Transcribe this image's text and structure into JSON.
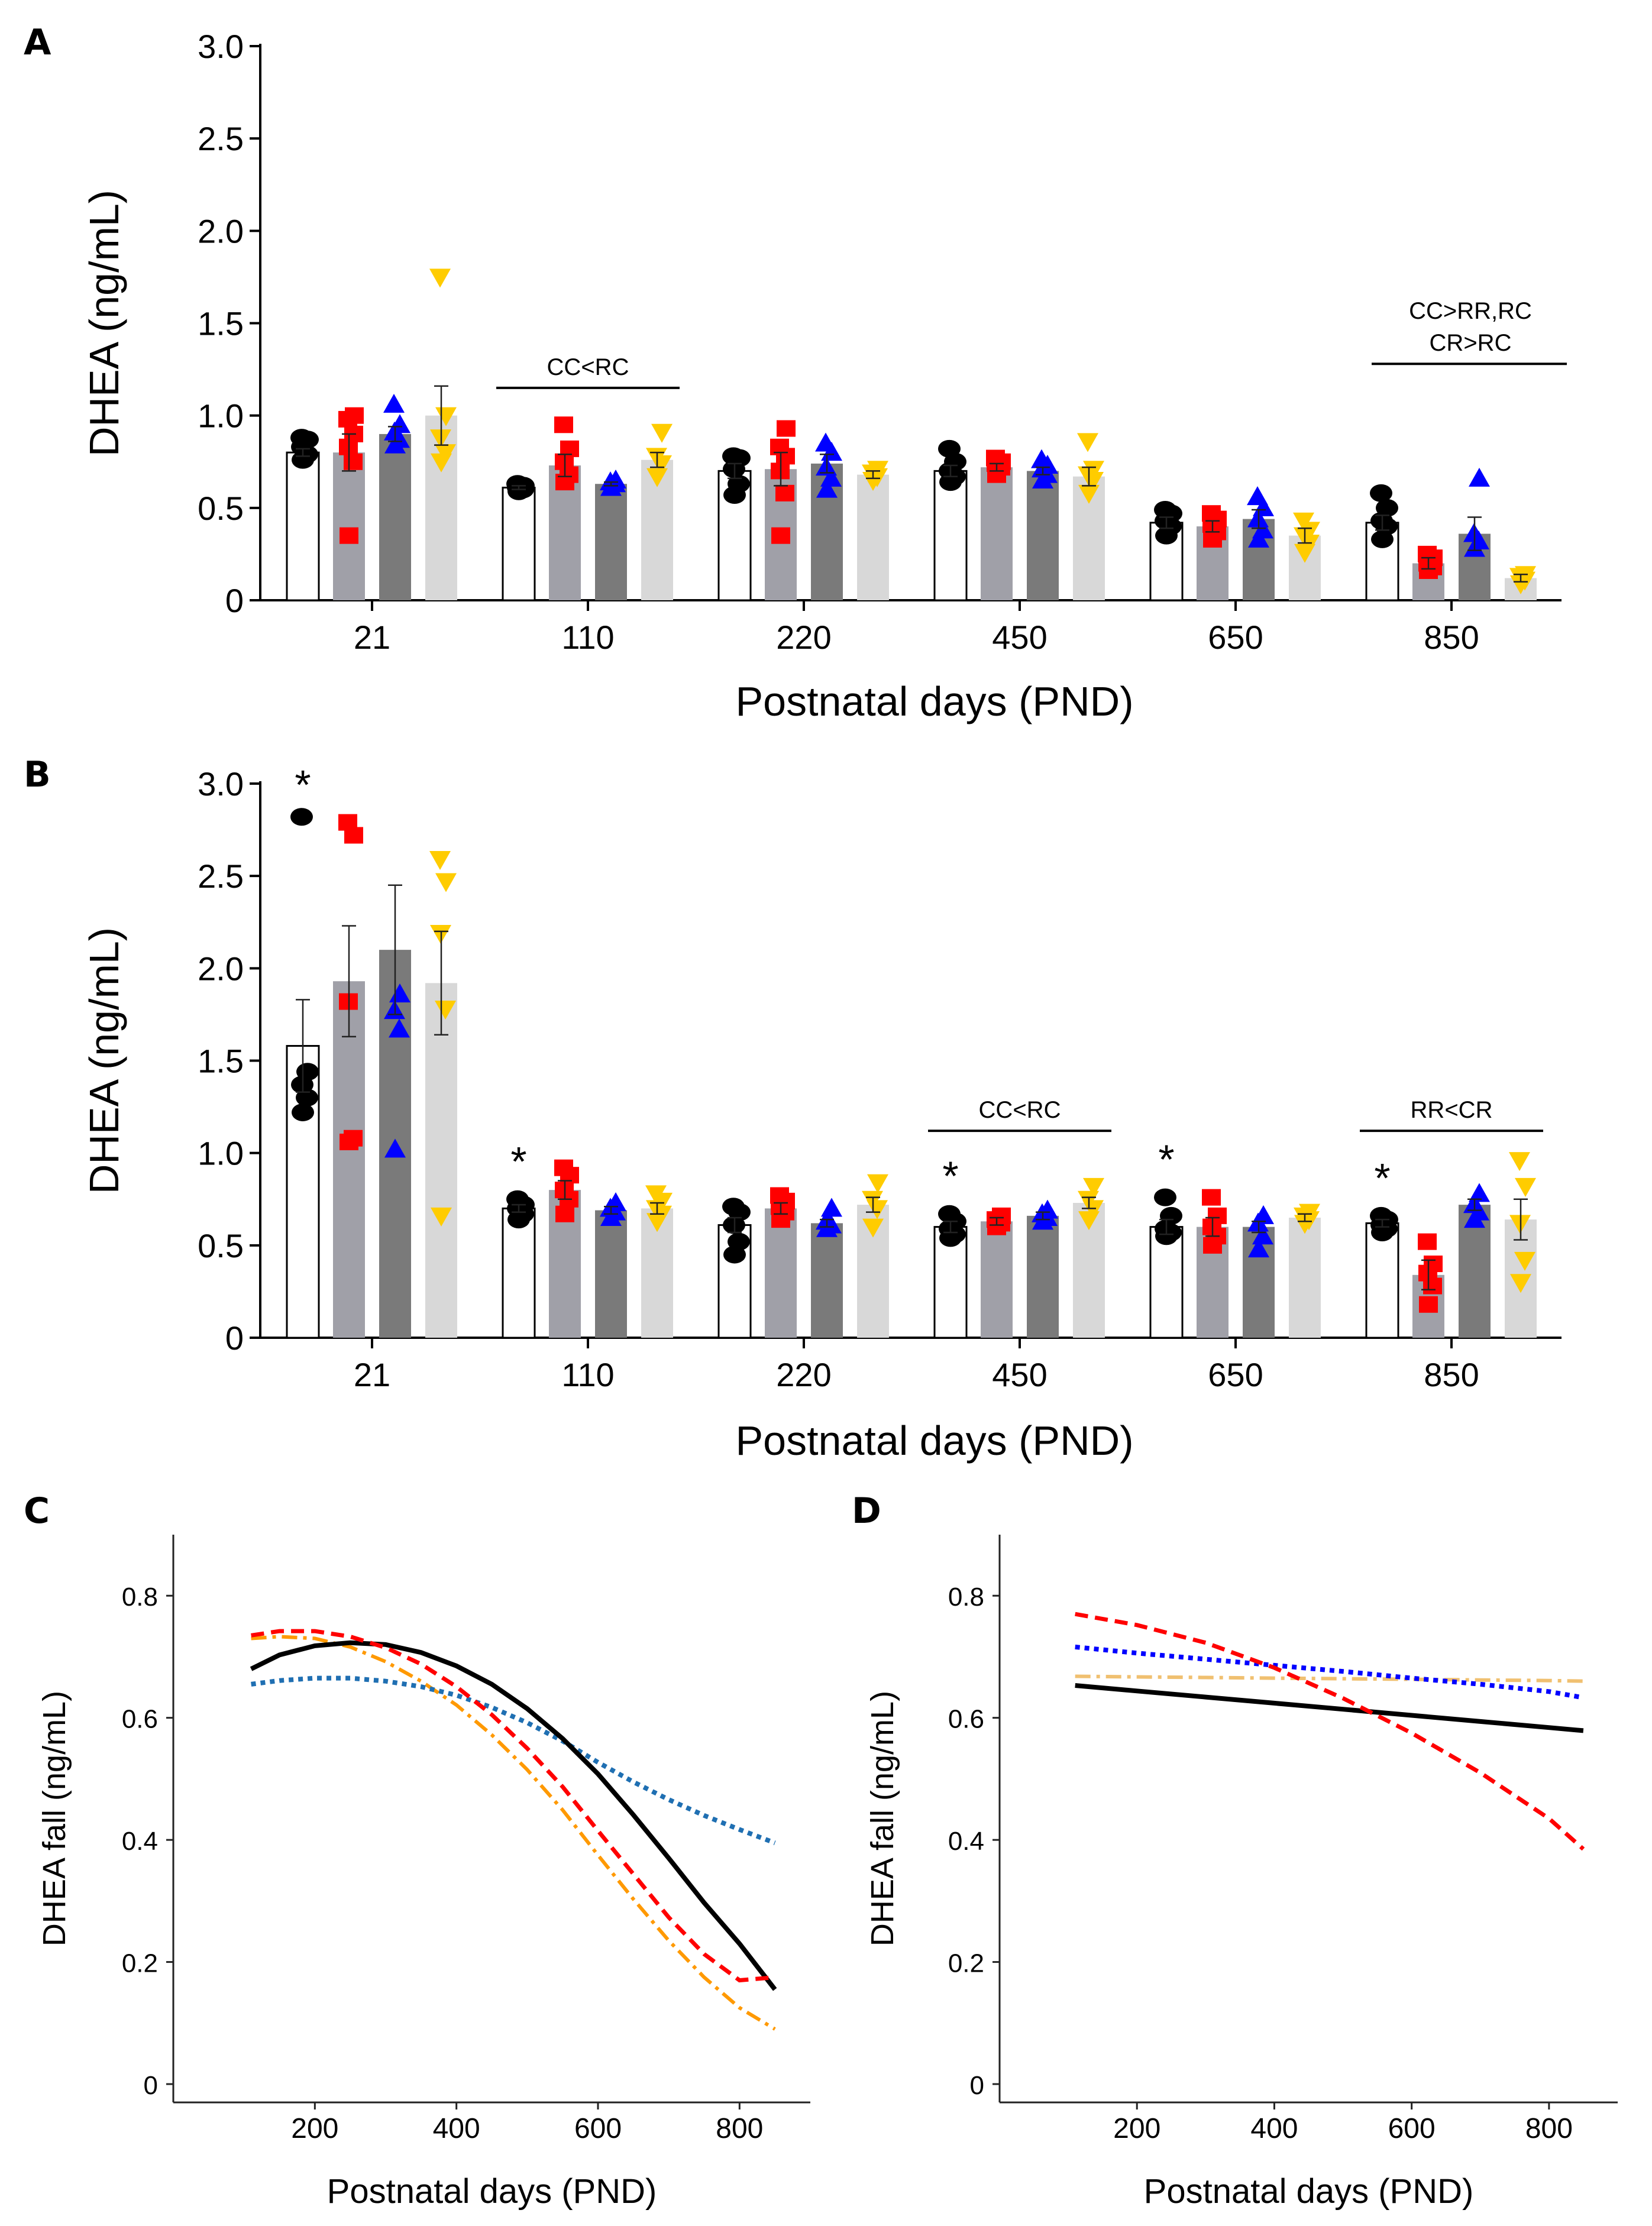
{
  "figure": {
    "colors": {
      "CC": "#000000",
      "CR": "#ff0000",
      "RC": "#0000ff",
      "RR": "#ffcc00",
      "bar_CC": "#ffffff",
      "bar_CR": "#a0a0a8",
      "bar_RC": "#7a7a7a",
      "bar_RR": "#d8d8d8",
      "fit_CC": "#000000",
      "fit_CR": "#ff0000",
      "fit_RC_C": "#1f6fb2",
      "fit_RC_D": "#0000ff",
      "fit_RR_C": "#ff9900",
      "fit_RR_D": "#f0c070"
    }
  },
  "chart_data": [
    {
      "panel": "A",
      "type": "bar",
      "xlabel": "Postnatal days (PND)",
      "ylabel": "DHEA (ng/mL)",
      "ylim": [
        0,
        3.0
      ],
      "yticks": [
        "0",
        "0.5",
        "1.0",
        "1.5",
        "2.0",
        "2.5",
        "3.0"
      ],
      "categories": [
        "21",
        "110",
        "220",
        "450",
        "650",
        "850"
      ],
      "series": [
        {
          "name": "CC",
          "marker": "circle",
          "values": [
            0.8,
            0.61,
            0.7,
            0.7,
            0.42,
            0.42
          ],
          "sem": [
            0.02,
            0.01,
            0.04,
            0.03,
            0.03,
            0.04
          ],
          "points": [
            [
              0.76,
              0.79,
              0.83,
              0.87,
              0.88
            ],
            [
              0.59,
              0.6,
              0.61,
              0.62,
              0.63
            ],
            [
              0.57,
              0.63,
              0.71,
              0.77,
              0.78
            ],
            [
              0.64,
              0.67,
              0.7,
              0.75,
              0.82
            ],
            [
              0.35,
              0.4,
              0.43,
              0.47,
              0.49
            ],
            [
              0.33,
              0.4,
              0.43,
              0.5,
              0.58
            ]
          ]
        },
        {
          "name": "CR",
          "marker": "square",
          "values": [
            0.8,
            0.73,
            0.71,
            0.72,
            0.4,
            0.2
          ],
          "sem": [
            0.1,
            0.06,
            0.09,
            0.02,
            0.03,
            0.03
          ],
          "points": [
            [
              0.35,
              0.75,
              0.83,
              0.9,
              0.98,
              1.0
            ],
            [
              0.64,
              0.68,
              0.75,
              0.82,
              0.95
            ],
            [
              0.35,
              0.58,
              0.7,
              0.78,
              0.83,
              0.93
            ],
            [
              0.68,
              0.72,
              0.74,
              0.75,
              0.77
            ],
            [
              0.33,
              0.37,
              0.41,
              0.44,
              0.47
            ],
            [
              0.16,
              0.18,
              0.2,
              0.23,
              0.25
            ]
          ]
        },
        {
          "name": "RC",
          "marker": "triangle-up",
          "values": [
            0.9,
            0.63,
            0.74,
            0.7,
            0.44,
            0.36
          ],
          "sem": [
            0.04,
            0.01,
            0.05,
            0.02,
            0.05,
            0.09
          ],
          "points": [
            [
              0.84,
              0.87,
              0.91,
              0.95,
              1.06
            ],
            [
              0.61,
              0.63,
              0.64,
              0.65
            ],
            [
              0.6,
              0.66,
              0.72,
              0.8,
              0.85
            ],
            [
              0.65,
              0.68,
              0.71,
              0.73,
              0.76
            ],
            [
              0.33,
              0.38,
              0.44,
              0.5,
              0.56
            ],
            [
              0.28,
              0.32,
              0.36,
              0.66
            ]
          ]
        },
        {
          "name": "RR",
          "marker": "triangle-down",
          "values": [
            1.0,
            0.76,
            0.68,
            0.67,
            0.35,
            0.12
          ],
          "sem": [
            0.16,
            0.04,
            0.02,
            0.05,
            0.04,
            0.02
          ],
          "points": [
            [
              0.75,
              0.8,
              0.88,
              1.0,
              1.75
            ],
            [
              0.67,
              0.74,
              0.78,
              0.91
            ],
            [
              0.65,
              0.67,
              0.69,
              0.71
            ],
            [
              0.58,
              0.65,
              0.68,
              0.71,
              0.86
            ],
            [
              0.26,
              0.31,
              0.35,
              0.38,
              0.43
            ],
            [
              0.09,
              0.11,
              0.13,
              0.14
            ]
          ]
        }
      ],
      "annotations": [
        {
          "text": "CC<RC",
          "category": "110"
        },
        {
          "text": "CC>RR,RC",
          "category": "850",
          "line2": "CR>RC"
        }
      ]
    },
    {
      "panel": "B",
      "type": "bar",
      "xlabel": "Postnatal days (PND)",
      "ylabel": "DHEA (ng/mL)",
      "ylim": [
        0,
        3.0
      ],
      "yticks": [
        "0",
        "0.5",
        "1.0",
        "1.5",
        "2.0",
        "2.5",
        "3.0"
      ],
      "categories": [
        "21",
        "110",
        "220",
        "450",
        "650",
        "850"
      ],
      "series": [
        {
          "name": "CC",
          "marker": "circle",
          "values": [
            1.58,
            0.7,
            0.61,
            0.6,
            0.6,
            0.62
          ],
          "sem": [
            0.25,
            0.02,
            0.04,
            0.03,
            0.04,
            0.02
          ],
          "points": [
            [
              1.22,
              1.3,
              1.37,
              1.44,
              2.82
            ],
            [
              0.64,
              0.67,
              0.7,
              0.72,
              0.75
            ],
            [
              0.45,
              0.52,
              0.61,
              0.68,
              0.71
            ],
            [
              0.54,
              0.56,
              0.59,
              0.63,
              0.67
            ],
            [
              0.55,
              0.57,
              0.59,
              0.66,
              0.76
            ],
            [
              0.57,
              0.59,
              0.61,
              0.64,
              0.66
            ]
          ]
        },
        {
          "name": "CR",
          "marker": "square",
          "values": [
            1.93,
            0.8,
            0.7,
            0.63,
            0.6,
            0.34
          ],
          "sem": [
            0.3,
            0.05,
            0.03,
            0.02,
            0.05,
            0.08
          ],
          "points": [
            [
              1.06,
              1.08,
              1.82,
              2.72,
              2.79
            ],
            [
              0.67,
              0.75,
              0.8,
              0.88,
              0.92
            ],
            [
              0.64,
              0.68,
              0.71,
              0.74,
              0.77
            ],
            [
              0.6,
              0.62,
              0.64,
              0.66
            ],
            [
              0.5,
              0.55,
              0.6,
              0.66,
              0.76
            ],
            [
              0.18,
              0.28,
              0.35,
              0.4,
              0.52
            ]
          ]
        },
        {
          "name": "RC",
          "marker": "triangle-up",
          "values": [
            2.1,
            0.69,
            0.62,
            0.66,
            0.6,
            0.72
          ],
          "sem": [
            0.35,
            0.02,
            0.02,
            0.02,
            0.03,
            0.03
          ],
          "points": [
            [
              1.02,
              1.67,
              1.77,
              1.86
            ],
            [
              0.65,
              0.68,
              0.7,
              0.73
            ],
            [
              0.59,
              0.61,
              0.63,
              0.7
            ],
            [
              0.63,
              0.65,
              0.67,
              0.69
            ],
            [
              0.48,
              0.55,
              0.62,
              0.66
            ],
            [
              0.64,
              0.68,
              0.72,
              0.78
            ]
          ]
        },
        {
          "name": "RR",
          "marker": "triangle-down",
          "values": [
            1.92,
            0.7,
            0.72,
            0.73,
            0.65,
            0.64
          ],
          "sem": [
            0.28,
            0.03,
            0.04,
            0.03,
            0.02,
            0.11
          ],
          "points": [
            [
              0.66,
              1.78,
              2.19,
              2.47,
              2.59
            ],
            [
              0.63,
              0.67,
              0.7,
              0.74,
              0.78
            ],
            [
              0.6,
              0.7,
              0.75,
              0.84
            ],
            [
              0.64,
              0.7,
              0.75,
              0.82
            ],
            [
              0.62,
              0.64,
              0.66,
              0.68
            ],
            [
              0.3,
              0.42,
              0.62,
              0.82,
              0.96
            ]
          ]
        }
      ],
      "stars": [
        {
          "text": "*",
          "category": "21"
        },
        {
          "text": "*",
          "category": "110"
        },
        {
          "text": "*",
          "category": "450"
        },
        {
          "text": "*",
          "category": "650"
        },
        {
          "text": "*",
          "category": "850"
        }
      ],
      "annotations": [
        {
          "text": "CC<RC",
          "category": "450"
        },
        {
          "text": "RR<CR",
          "category": "850"
        }
      ]
    },
    {
      "panel": "C",
      "type": "line",
      "xlabel": "Postnatal days (PND)",
      "ylabel": "DHEA fall (ng/mL)",
      "xlim": [
        0,
        900
      ],
      "ylim": [
        -0.03,
        0.9
      ],
      "xticks": [
        "200",
        "400",
        "600",
        "800"
      ],
      "yticks": [
        "0",
        "0.2",
        "0.4",
        "0.6",
        "0.8"
      ],
      "x": [
        110,
        150,
        200,
        250,
        300,
        350,
        400,
        450,
        500,
        550,
        600,
        650,
        700,
        750,
        800,
        850
      ],
      "series": [
        {
          "name": "CC",
          "style": "solid",
          "values": [
            0.68,
            0.703,
            0.718,
            0.723,
            0.72,
            0.707,
            0.685,
            0.655,
            0.615,
            0.566,
            0.508,
            0.441,
            0.37,
            0.297,
            0.23,
            0.155
          ]
        },
        {
          "name": "CR",
          "style": "dashed",
          "values": [
            0.735,
            0.742,
            0.742,
            0.733,
            0.715,
            0.688,
            0.651,
            0.605,
            0.55,
            0.487,
            0.415,
            0.344,
            0.273,
            0.213,
            0.17,
            0.175
          ]
        },
        {
          "name": "RC",
          "style": "dotted",
          "values": [
            0.655,
            0.661,
            0.665,
            0.665,
            0.66,
            0.651,
            0.637,
            0.617,
            0.592,
            0.562,
            0.527,
            0.495,
            0.466,
            0.44,
            0.417,
            0.395
          ]
        },
        {
          "name": "RR",
          "style": "dashdot",
          "values": [
            0.73,
            0.733,
            0.73,
            0.716,
            0.692,
            0.66,
            0.621,
            0.572,
            0.515,
            0.449,
            0.375,
            0.303,
            0.235,
            0.175,
            0.125,
            0.09
          ]
        }
      ]
    },
    {
      "panel": "D",
      "type": "line",
      "xlabel": "Postnatal days (PND)",
      "ylabel": "DHEA fall (ng/mL)",
      "xlim": [
        0,
        900
      ],
      "ylim": [
        -0.03,
        0.9
      ],
      "xticks": [
        "200",
        "400",
        "600",
        "800"
      ],
      "yticks": [
        "0",
        "0.2",
        "0.4",
        "0.6",
        "0.8"
      ],
      "x": [
        110,
        200,
        300,
        400,
        500,
        600,
        700,
        800,
        850
      ],
      "series": [
        {
          "name": "CC",
          "style": "solid",
          "values": [
            0.653,
            0.644,
            0.634,
            0.624,
            0.614,
            0.604,
            0.594,
            0.584,
            0.579
          ]
        },
        {
          "name": "CR",
          "style": "dashed",
          "values": [
            0.77,
            0.752,
            0.723,
            0.682,
            0.632,
            0.575,
            0.51,
            0.435,
            0.385
          ]
        },
        {
          "name": "RC",
          "style": "dotted",
          "values": [
            0.716,
            0.706,
            0.696,
            0.686,
            0.676,
            0.665,
            0.655,
            0.643,
            0.633
          ]
        },
        {
          "name": "RR",
          "style": "dashdot",
          "values": [
            0.668,
            0.667,
            0.666,
            0.665,
            0.664,
            0.663,
            0.662,
            0.661,
            0.66
          ]
        }
      ]
    }
  ]
}
